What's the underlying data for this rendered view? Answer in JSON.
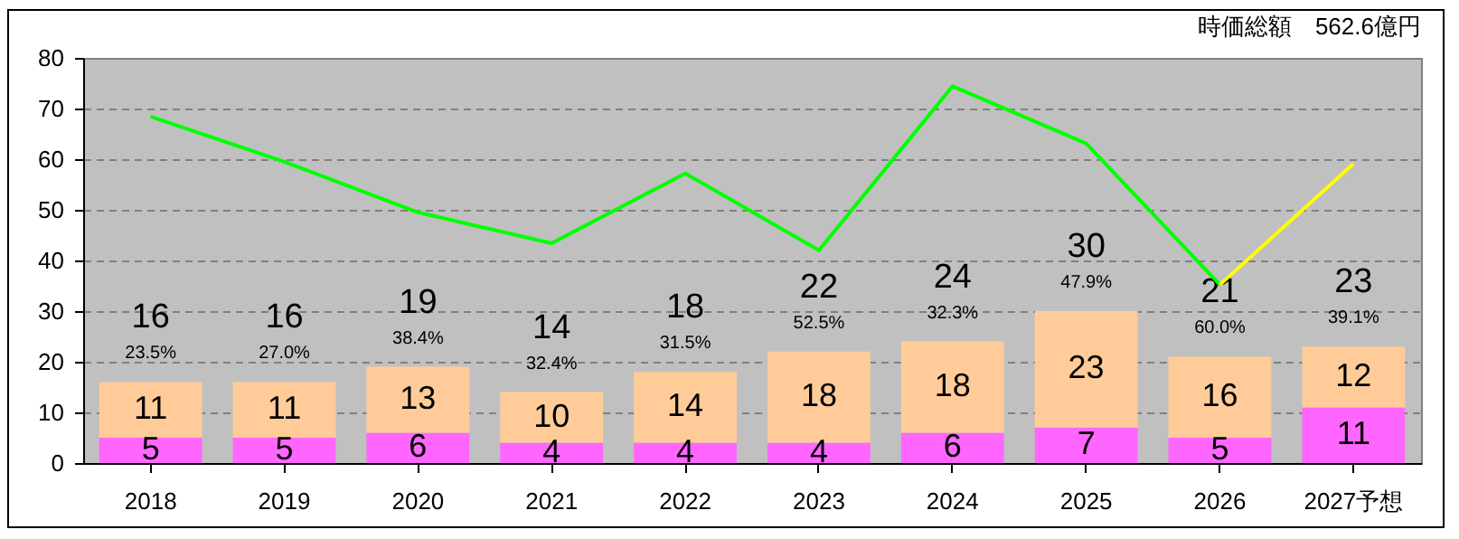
{
  "chart_data": {
    "type": "bar",
    "stacked": true,
    "categories": [
      "2018",
      "2019",
      "2020",
      "2021",
      "2022",
      "2023",
      "2024",
      "2025",
      "2026",
      "2027予想"
    ],
    "series": [
      {
        "color": "#ff66ff",
        "values": [
          5,
          5,
          6,
          4,
          4,
          4,
          6,
          7,
          5,
          11
        ],
        "value_labels": [
          "5",
          "5",
          "6",
          "4",
          "4",
          "4",
          "6",
          "7",
          "5",
          "11"
        ]
      },
      {
        "color": "#ffcc99",
        "values": [
          11,
          11,
          13,
          10,
          14,
          18,
          18,
          23,
          16,
          12
        ],
        "value_labels": [
          "11",
          "11",
          "13",
          "10",
          "14",
          "18",
          "18",
          "23",
          "16",
          "12"
        ]
      },
      {
        "type": "line",
        "color": "#00ff00",
        "values": [
          68.4,
          59.5,
          49.5,
          43.4,
          57.2,
          42.0,
          74.4,
          63.1,
          35.2,
          null
        ]
      },
      {
        "type": "line",
        "color": "#ffff00",
        "values": [
          null,
          null,
          null,
          null,
          null,
          null,
          null,
          null,
          35.2,
          59.1
        ]
      }
    ],
    "totals": [
      "16",
      "16",
      "19",
      "14",
      "18",
      "22",
      "24",
      "30",
      "21",
      "23"
    ],
    "annotations": [
      "時価総額　562.6億円",
      {
        "text": "23.5%",
        "x": "2018",
        "y": 16
      },
      {
        "text": "27.0%",
        "x": "2019",
        "y": 16
      },
      {
        "text": "38.4%",
        "x": "2020",
        "y": 19
      },
      {
        "text": "32.4%",
        "x": "2021",
        "y": 14
      },
      {
        "text": "31.5%",
        "x": "2022",
        "y": 18
      },
      {
        "text": "52.5%",
        "x": "2023",
        "y": 22
      },
      {
        "text": "32.3%",
        "x": "2024",
        "y": 24
      },
      {
        "text": "47.9%",
        "x": "2025",
        "y": 30
      },
      {
        "text": "60.0%",
        "x": "2026",
        "y": 21
      },
      {
        "text": "39.1%",
        "x": "2027予想",
        "y": 23
      }
    ],
    "ylim": [
      0,
      80
    ],
    "yticks": [
      0,
      10,
      20,
      30,
      40,
      50,
      60,
      70,
      80
    ],
    "grid": "y",
    "legend": false,
    "line_style": "solid"
  }
}
